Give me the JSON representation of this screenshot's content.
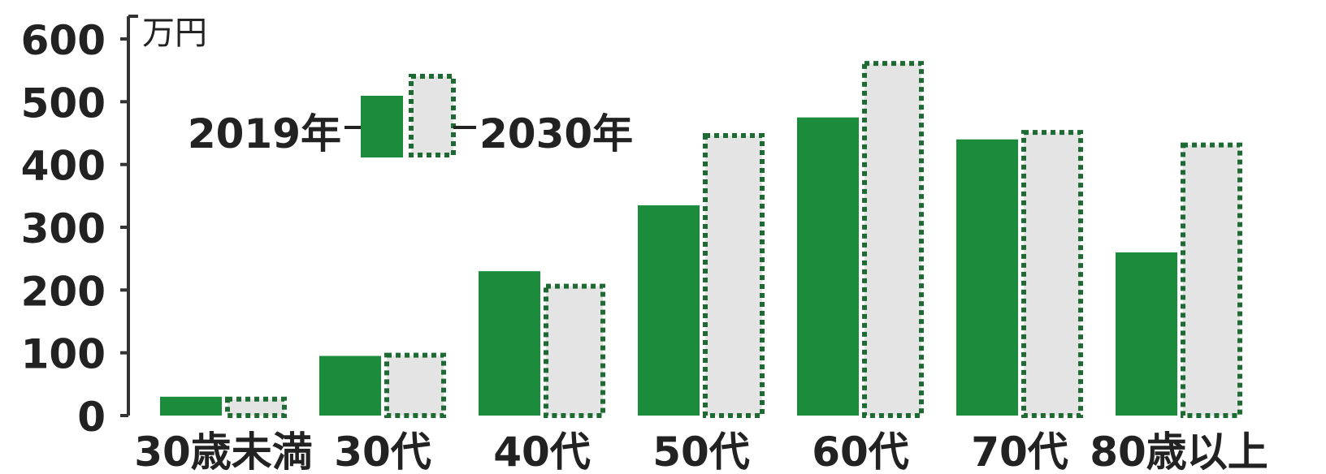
{
  "chart_data": {
    "type": "bar",
    "unit": "万円",
    "categories": [
      "30歳未満",
      "30代",
      "40代",
      "50代",
      "60代",
      "70代",
      "80歳以上"
    ],
    "series": [
      {
        "name": "2019年",
        "values": [
          30,
          95,
          230,
          335,
          475,
          440,
          260
        ],
        "color": "#1a8c3c"
      },
      {
        "name": "2030年",
        "values": [
          30,
          100,
          210,
          450,
          565,
          455,
          435
        ],
        "color": "#e4e4e4",
        "border": "#1d6b33"
      }
    ],
    "yticks": [
      0,
      100,
      200,
      300,
      400,
      500,
      600
    ],
    "ylim": [
      0,
      600
    ],
    "legend_position": "top-left"
  }
}
